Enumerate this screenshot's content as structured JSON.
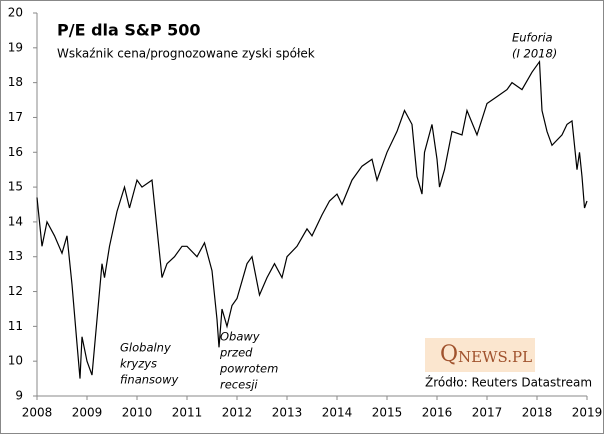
{
  "chart_data": {
    "type": "line",
    "title": "P/E dla S&P 500",
    "subtitle": "Wskaźnik cena/prognozowane zyski spółek",
    "source": "Źródło: Reuters Datastream",
    "logo": {
      "initial": "Q",
      "rest": "NEWS.PL"
    },
    "annotations": [
      {
        "lines": [
          "Globalny",
          "kryzys",
          "finansowy"
        ]
      },
      {
        "lines": [
          "Obawy",
          "przed",
          "powrotem",
          "recesji"
        ]
      },
      {
        "lines": [
          "Euforia",
          "(I 2018)"
        ]
      }
    ],
    "xlim": [
      2008,
      2019
    ],
    "xticks": [
      2008,
      2009,
      2010,
      2011,
      2012,
      2013,
      2014,
      2015,
      2016,
      2017,
      2018,
      2019
    ],
    "ylim": [
      9,
      20
    ],
    "yticks": [
      9,
      10,
      11,
      12,
      13,
      14,
      15,
      16,
      17,
      18,
      19,
      20
    ],
    "color": "#000000",
    "x": [
      2008.0,
      2008.1,
      2008.2,
      2008.35,
      2008.5,
      2008.6,
      2008.7,
      2008.8,
      2008.86,
      2008.9,
      2009.0,
      2009.1,
      2009.2,
      2009.3,
      2009.35,
      2009.45,
      2009.6,
      2009.75,
      2009.85,
      2010.0,
      2010.1,
      2010.3,
      2010.4,
      2010.5,
      2010.6,
      2010.75,
      2010.9,
      2011.0,
      2011.2,
      2011.35,
      2011.5,
      2011.6,
      2011.64,
      2011.7,
      2011.8,
      2011.9,
      2012.0,
      2012.2,
      2012.3,
      2012.45,
      2012.6,
      2012.75,
      2012.9,
      2013.0,
      2013.2,
      2013.4,
      2013.5,
      2013.7,
      2013.85,
      2014.0,
      2014.1,
      2014.3,
      2014.5,
      2014.7,
      2014.8,
      2015.0,
      2015.2,
      2015.35,
      2015.5,
      2015.6,
      2015.7,
      2015.75,
      2015.9,
      2016.0,
      2016.05,
      2016.15,
      2016.3,
      2016.5,
      2016.6,
      2016.8,
      2017.0,
      2017.2,
      2017.4,
      2017.5,
      2017.7,
      2017.9,
      2018.0,
      2018.05,
      2018.1,
      2018.2,
      2018.3,
      2018.5,
      2018.6,
      2018.7,
      2018.8,
      2018.85,
      2018.9,
      2018.95,
      2019.0
    ],
    "values": [
      14.7,
      13.3,
      14.0,
      13.6,
      13.1,
      13.6,
      12.2,
      10.5,
      9.5,
      10.7,
      10.0,
      9.6,
      11.2,
      12.8,
      12.4,
      13.3,
      14.3,
      15.0,
      14.4,
      15.2,
      15.0,
      15.2,
      13.8,
      12.4,
      12.8,
      13.0,
      13.3,
      13.3,
      13.0,
      13.4,
      12.6,
      11.2,
      10.4,
      11.5,
      11.0,
      11.6,
      11.8,
      12.8,
      13.0,
      11.9,
      12.4,
      12.8,
      12.4,
      13.0,
      13.3,
      13.8,
      13.6,
      14.2,
      14.6,
      14.8,
      14.5,
      15.2,
      15.6,
      15.8,
      15.2,
      16.0,
      16.6,
      17.2,
      16.8,
      15.3,
      14.8,
      16.0,
      16.8,
      15.8,
      15.0,
      15.5,
      16.6,
      16.5,
      17.2,
      16.5,
      17.4,
      17.6,
      17.8,
      18.0,
      17.8,
      18.3,
      18.5,
      18.6,
      17.2,
      16.6,
      16.2,
      16.5,
      16.8,
      16.9,
      15.5,
      16.0,
      15.3,
      14.4,
      14.6
    ]
  }
}
